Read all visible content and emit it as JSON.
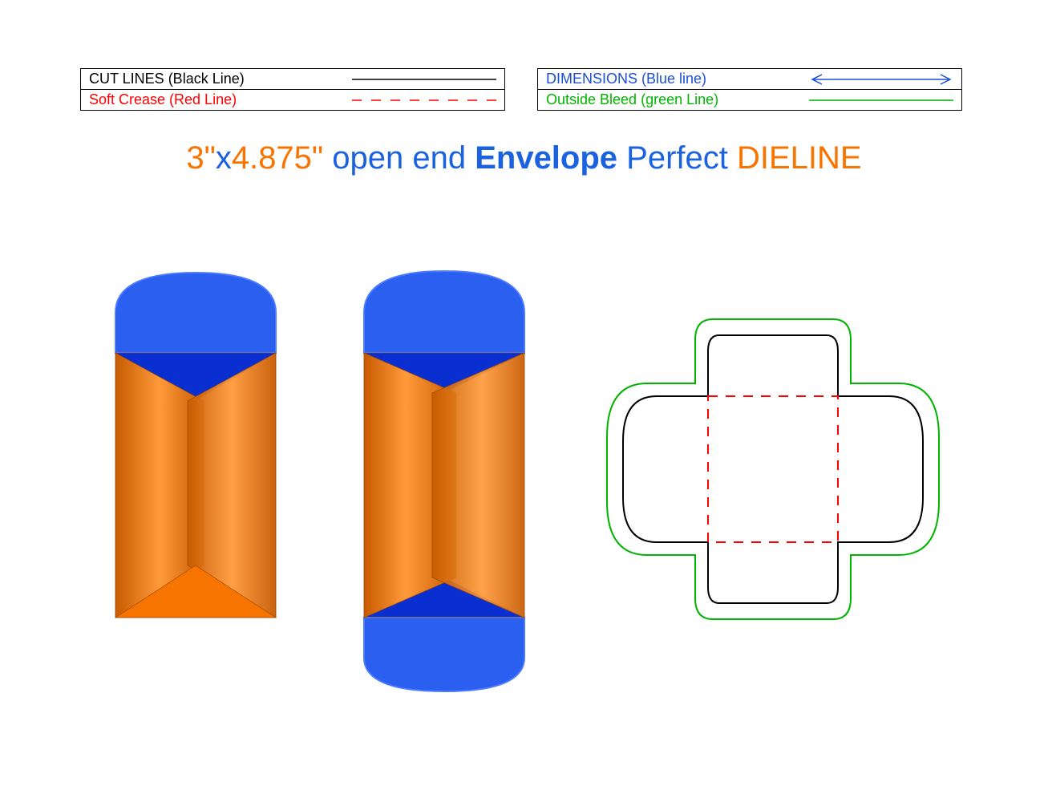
{
  "legend": {
    "left": [
      {
        "label": "CUT LINES (Black Line)",
        "color": "#000000",
        "style": "solid"
      },
      {
        "label": "Soft Crease (Red Line)",
        "color": "#ff0000",
        "style": "dashed"
      }
    ],
    "right": [
      {
        "label": "DIMENSIONS (Blue line)",
        "color": "#1a4fd6",
        "style": "arrow"
      },
      {
        "label": "Outside Bleed (green Line)",
        "color": "#00b400",
        "style": "solid"
      }
    ]
  },
  "title": {
    "parts": [
      {
        "text": "3\"",
        "color": "#f77400"
      },
      {
        "text": "x",
        "color": "#1a62e0"
      },
      {
        "text": "4.875\" ",
        "color": "#f77400"
      },
      {
        "text": "open end ",
        "color": "#1a62e0"
      },
      {
        "text": "Envelope ",
        "color": "#1a62e0",
        "weight": "600"
      },
      {
        "text": "Perfect ",
        "color": "#1a62e0"
      },
      {
        "text": "DIELINE",
        "color": "#f77400"
      }
    ]
  },
  "colors": {
    "orange": "#f77400",
    "orange_dark": "#c75a00",
    "orange_light": "#ff9a3a",
    "blue": "#2a5ff0",
    "blue_dark": "#0a2fd0",
    "blue_light": "#4b7bff",
    "black": "#000000",
    "red": "#ff0000",
    "green": "#00b400"
  },
  "envelope": {
    "width_in": 3,
    "height_in": 4.875
  }
}
